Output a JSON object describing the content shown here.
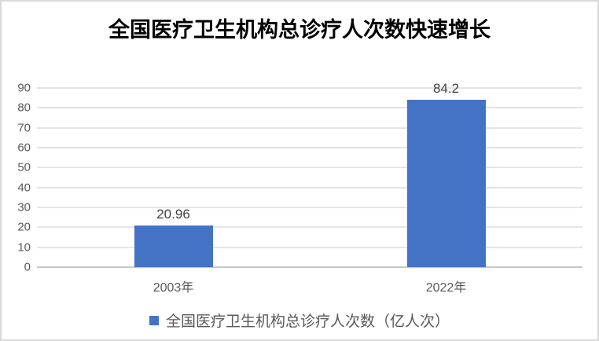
{
  "title": "全国医疗卫生机构总诊疗人次数快速增长",
  "legend": {
    "label": "全国医疗卫生机构总诊疗人次数（亿人次）",
    "marker_icon": "legend-square-marker"
  },
  "colors": {
    "bar": "#4472C4",
    "legend_marker": "#4472C4",
    "title_text": "#000000",
    "axis_text": "#595959",
    "data_label_text": "#404040",
    "gridline": "#E5E5E5",
    "axis_line": "#C8C8C8",
    "border": "#D9D9D9",
    "background": "#FFFFFF"
  },
  "chart_data": {
    "type": "bar",
    "title": "全国医疗卫生机构总诊疗人次数快速增长",
    "categories": [
      "2003年",
      "2022年"
    ],
    "values": [
      20.96,
      84.2
    ],
    "data_labels": [
      "20.96",
      "84.2"
    ],
    "series": [
      {
        "name": "全国医疗卫生机构总诊疗人次数（亿人次）",
        "values": [
          20.96,
          84.2
        ],
        "color": "#4472C4"
      }
    ],
    "xlabel": "",
    "ylabel": "",
    "ylim": [
      0,
      90
    ],
    "yticks": [
      0,
      10,
      20,
      30,
      40,
      50,
      60,
      70,
      80,
      90
    ],
    "grid": true,
    "legend_position": "bottom"
  }
}
